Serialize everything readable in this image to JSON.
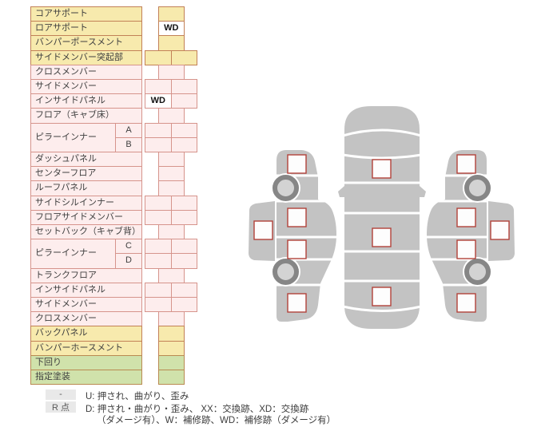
{
  "colors": {
    "row_yellow": "#f7eaad",
    "row_pink": "#fdeded",
    "row_green": "#d0e2ab",
    "border_yellow": "#c28157",
    "border_pink": "#d6948c",
    "border_green": "#b98a51",
    "marker_border_red": "#b2423a",
    "car_body_grey": "#c3c3c3",
    "wheel_ring_grey": "#868686",
    "wheel_hub_grey": "#d3d3d3",
    "badge_grey": "#e9e9e9"
  },
  "table": {
    "rows": [
      {
        "label": "コアサポート",
        "color": "yellow",
        "cells": "center",
        "values": [
          ""
        ]
      },
      {
        "label": "ロアサポート",
        "color": "yellow",
        "cells": "center",
        "values": [
          "WD"
        ]
      },
      {
        "label": "バンパーポースメント",
        "color": "yellow",
        "cells": "center",
        "values": [
          ""
        ]
      },
      {
        "label": "サイドメンバー突起部",
        "color": "yellow",
        "cells": "double",
        "values": [
          "",
          ""
        ]
      },
      {
        "label": "クロスメンバー",
        "color": "pink",
        "cells": "center",
        "values": [
          ""
        ]
      },
      {
        "label": "サイドメンバー",
        "color": "pink",
        "cells": "double",
        "values": [
          "",
          ""
        ]
      },
      {
        "label": "インサイドパネル",
        "color": "pink",
        "cells": "double",
        "values": [
          "WD",
          ""
        ]
      },
      {
        "label": "フロア（キャブ床）",
        "color": "pink",
        "cells": "center",
        "values": [
          ""
        ]
      },
      {
        "label": "ピラーインナー",
        "sub": "A",
        "group": "start",
        "color": "pink",
        "cells": "double",
        "values": [
          "",
          ""
        ]
      },
      {
        "label": "",
        "sub": "B",
        "group": "cont",
        "color": "pink",
        "cells": "double",
        "values": [
          "",
          ""
        ]
      },
      {
        "label": "ダッシュパネル",
        "color": "pink",
        "cells": "center",
        "values": [
          ""
        ]
      },
      {
        "label": "センターフロア",
        "color": "pink",
        "cells": "center",
        "values": [
          ""
        ]
      },
      {
        "label": "ルーフパネル",
        "color": "pink",
        "cells": "center",
        "values": [
          ""
        ]
      },
      {
        "label": "サイドシルインナー",
        "color": "pink",
        "cells": "double",
        "values": [
          "",
          ""
        ]
      },
      {
        "label": "フロアサイドメンバー",
        "color": "pink",
        "cells": "double",
        "values": [
          "",
          ""
        ]
      },
      {
        "label": "セットバック（キャブ背）",
        "color": "pink",
        "cells": "center",
        "values": [
          ""
        ]
      },
      {
        "label": "ピラーインナー",
        "sub": "C",
        "group": "start",
        "color": "pink",
        "cells": "double",
        "values": [
          "",
          ""
        ]
      },
      {
        "label": "",
        "sub": "D",
        "group": "cont",
        "color": "pink",
        "cells": "double",
        "values": [
          "",
          ""
        ]
      },
      {
        "label": "トランクフロア",
        "color": "pink",
        "cells": "center",
        "values": [
          ""
        ]
      },
      {
        "label": "インサイドパネル",
        "color": "pink",
        "cells": "double",
        "values": [
          "",
          ""
        ]
      },
      {
        "label": "サイドメンバー",
        "color": "pink",
        "cells": "double",
        "values": [
          "",
          ""
        ]
      },
      {
        "label": "クロスメンバー",
        "color": "pink",
        "cells": "center",
        "values": [
          ""
        ]
      },
      {
        "label": "バックパネル",
        "color": "yellow",
        "cells": "center",
        "values": [
          ""
        ]
      },
      {
        "label": "バンパーホースメント",
        "color": "yellow",
        "cells": "center",
        "values": [
          ""
        ]
      },
      {
        "label": "下回り",
        "color": "green",
        "cells": "center",
        "values": [
          ""
        ]
      },
      {
        "label": "指定塗装",
        "color": "green",
        "cells": "center",
        "values": [
          ""
        ]
      }
    ]
  },
  "legend": {
    "row1_badge": "-",
    "row1_text": "U: 押され、曲がり、歪み",
    "row2_badge": "R 点",
    "row2_text": "D: 押され・曲がり・歪み、 XX：交換跡、XD：交換跡",
    "row2_text_cont": "（ダメージ有）、W：補修跡、WD：補修跡（ダメージ有）"
  }
}
